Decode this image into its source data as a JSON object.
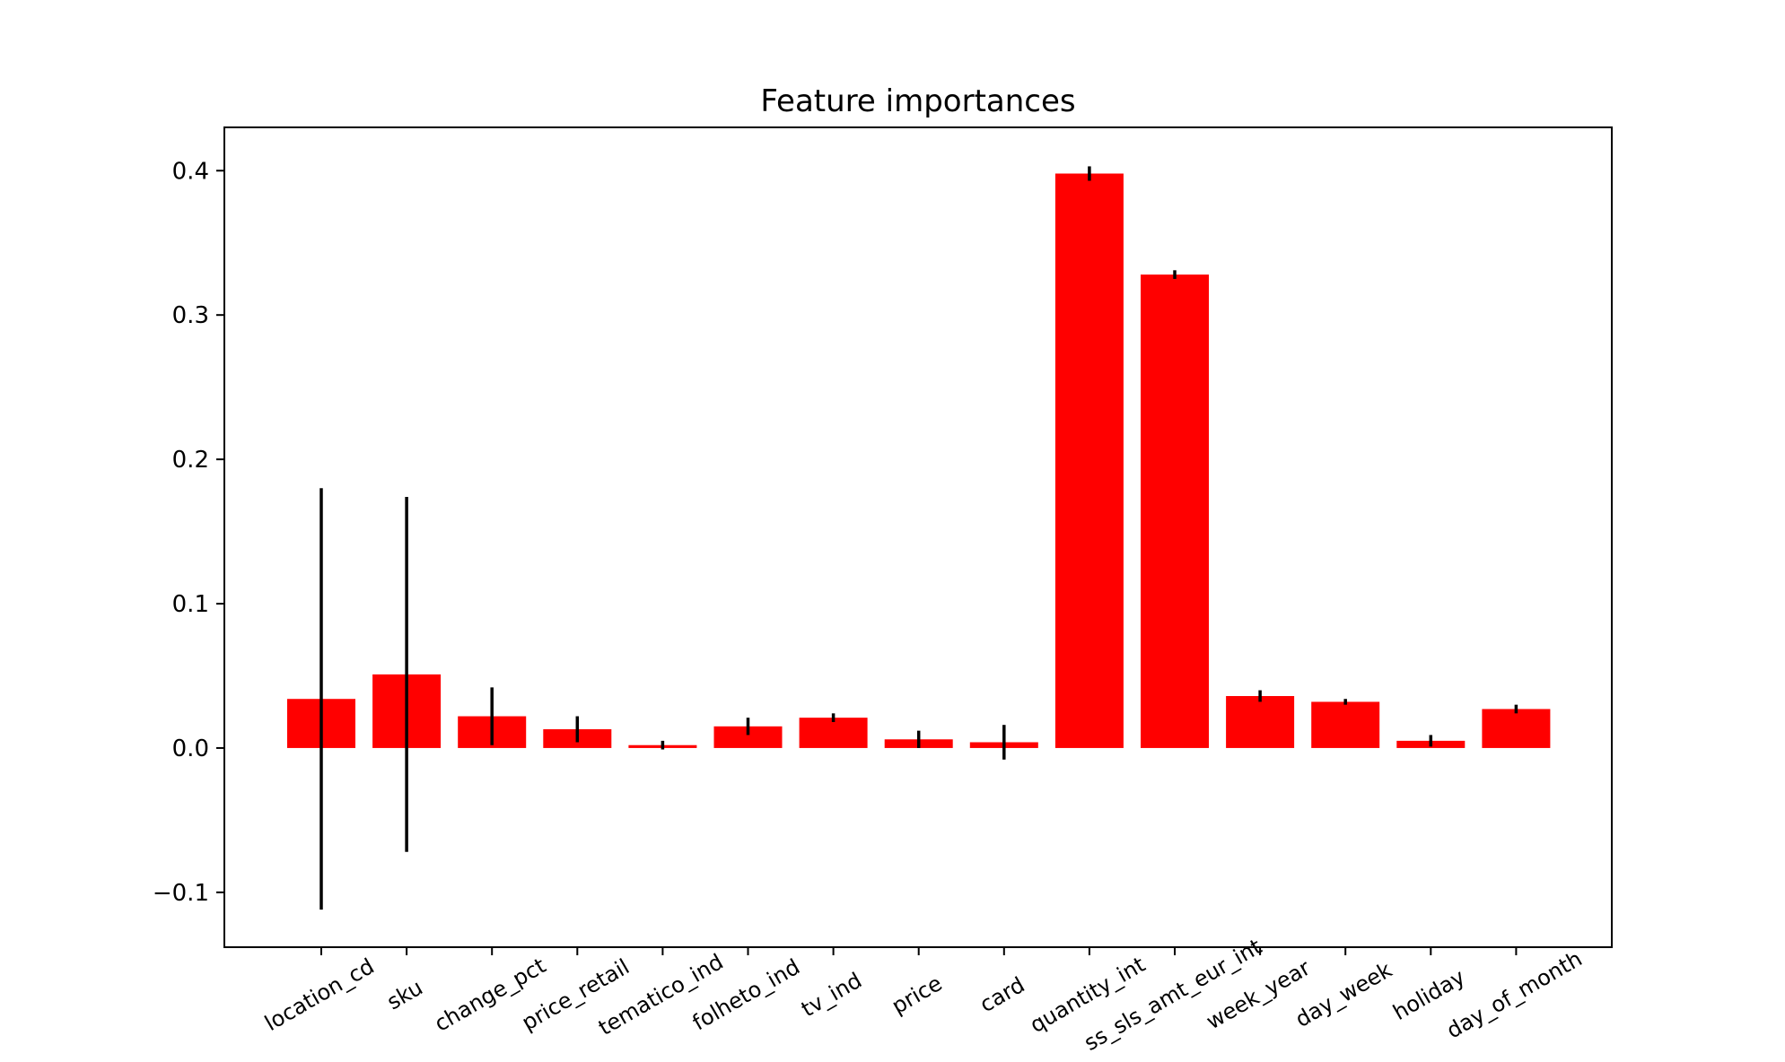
{
  "chart_data": {
    "type": "bar",
    "title": "Feature importances",
    "xlabel": "",
    "ylabel": "",
    "categories": [
      "location_cd",
      "sku",
      "change_pct",
      "price_retail",
      "tematico_ind",
      "folheto_ind",
      "tv_ind",
      "price",
      "card",
      "quantity_int",
      "ss_sls_amt_eur_int",
      "week_year",
      "day_week",
      "holiday",
      "day_of_month"
    ],
    "values": [
      0.034,
      0.051,
      0.022,
      0.013,
      0.002,
      0.015,
      0.021,
      0.006,
      0.004,
      0.398,
      0.328,
      0.036,
      0.032,
      0.005,
      0.027
    ],
    "errors": [
      0.146,
      0.123,
      0.02,
      0.009,
      0.003,
      0.006,
      0.003,
      0.006,
      0.012,
      0.005,
      0.003,
      0.004,
      0.002,
      0.004,
      0.003
    ],
    "ylim": [
      -0.138,
      0.43
    ],
    "yticks": [
      -0.1,
      0.0,
      0.1,
      0.2,
      0.3,
      0.4
    ],
    "ytick_labels": [
      "−0.1",
      "0.0",
      "0.1",
      "0.2",
      "0.3",
      "0.4"
    ],
    "bar_color": "#ff0000",
    "error_color": "#000000",
    "grid": false,
    "legend": "none"
  }
}
